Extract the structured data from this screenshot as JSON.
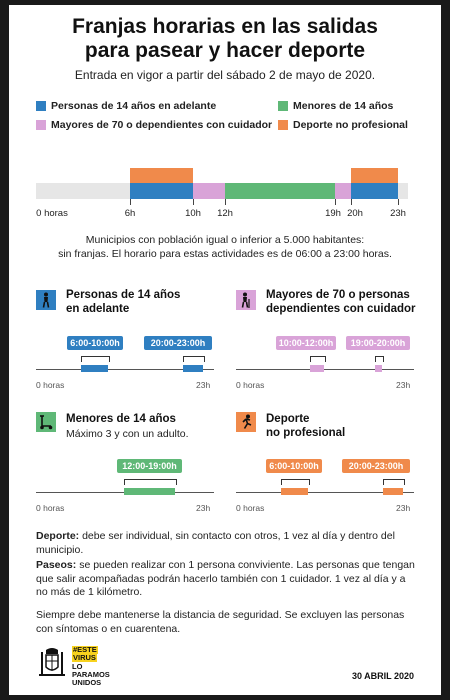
{
  "header": {
    "title_line1": "Franjas horarias en las salidas",
    "title_line2": "para pasear y hacer deporte",
    "subtitle": "Entrada en vigor a partir del sábado 2 de mayo de 2020."
  },
  "colors": {
    "blue": "#2f7fc1",
    "green": "#5fb877",
    "pink": "#d9a3d8",
    "orange": "#f08a4b"
  },
  "legend": [
    {
      "label": "Personas de 14 años en adelante",
      "color": "#2f7fc1"
    },
    {
      "label": "Menores de 14 años",
      "color": "#5fb877"
    },
    {
      "label": "Mayores de 70 o dependientes con cuidador",
      "color": "#d9a3d8"
    },
    {
      "label": "Deporte no profesional",
      "color": "#f08a4b"
    }
  ],
  "main_timeline": {
    "tick_labels": [
      "0 horas",
      "6h",
      "10h",
      "12h",
      "19h",
      "20h",
      "23h"
    ]
  },
  "note": {
    "line1": "Municipios con población igual o inferior a 5.000 habitantes:",
    "line2": "sin franjas. El horario para estas actividades es de 06:00 a 23:00 horas."
  },
  "panels": {
    "adults": {
      "icon": "walking-person-icon",
      "title1": "Personas de 14 años",
      "title2": "en adelante",
      "pill1": "6:00-10:00h",
      "pill2": "20:00-23:00h",
      "start": "0 horas",
      "end": "23h"
    },
    "elderly": {
      "icon": "elderly-cane-icon",
      "title1": "Mayores de 70 o personas",
      "title2": "dependientes con cuidador",
      "pill1": "10:00-12:00h",
      "pill2": "19:00-20:00h",
      "start": "0 horas",
      "end": "23h"
    },
    "minors": {
      "icon": "scooter-icon",
      "title1": "Menores de 14 años",
      "subtitle": "Máximo 3 y con un adulto.",
      "pill1": "12:00-19:00h",
      "start": "0 horas",
      "end": "23h"
    },
    "sport": {
      "icon": "running-person-icon",
      "title1": "Deporte",
      "title2": "no profesional",
      "pill1": "6:00-10:00h",
      "pill2": "20:00-23:00h",
      "start": "0 horas",
      "end": "23h"
    }
  },
  "footer": {
    "deporte_label": "Deporte:",
    "deporte_text": " debe ser individual, sin contacto con otros, 1 vez al día y dentro del municipio.",
    "paseos_label": "Paseos:",
    "paseos_text": " se pueden realizar con 1 persona conviviente. Las personas que tengan que salir acompañadas podrán hacerlo también con 1 cuidador. 1 vez al día y a no más de 1 kilómetro.",
    "distance_text": "Siempre debe mantenerse la distancia de seguridad. Se excluyen las personas con síntomas o en cuarentena.",
    "logo_line1": "#ESTE",
    "logo_line2": "VIRUS",
    "logo_line3": "LO",
    "logo_line4": "PARAMOS",
    "logo_line5": "UNIDOS",
    "date": "30 ABRIL 2020"
  },
  "chart_data": {
    "type": "timeline",
    "x_range_hours": [
      0,
      23
    ],
    "series": [
      {
        "name": "Personas de 14 años en adelante",
        "intervals": [
          [
            6,
            10
          ],
          [
            20,
            23
          ]
        ]
      },
      {
        "name": "Menores de 14 años",
        "intervals": [
          [
            12,
            19
          ]
        ]
      },
      {
        "name": "Mayores de 70 o dependientes con cuidador",
        "intervals": [
          [
            10,
            12
          ],
          [
            19,
            20
          ]
        ]
      },
      {
        "name": "Deporte no profesional",
        "intervals": [
          [
            6,
            10
          ],
          [
            20,
            23
          ]
        ]
      }
    ]
  }
}
